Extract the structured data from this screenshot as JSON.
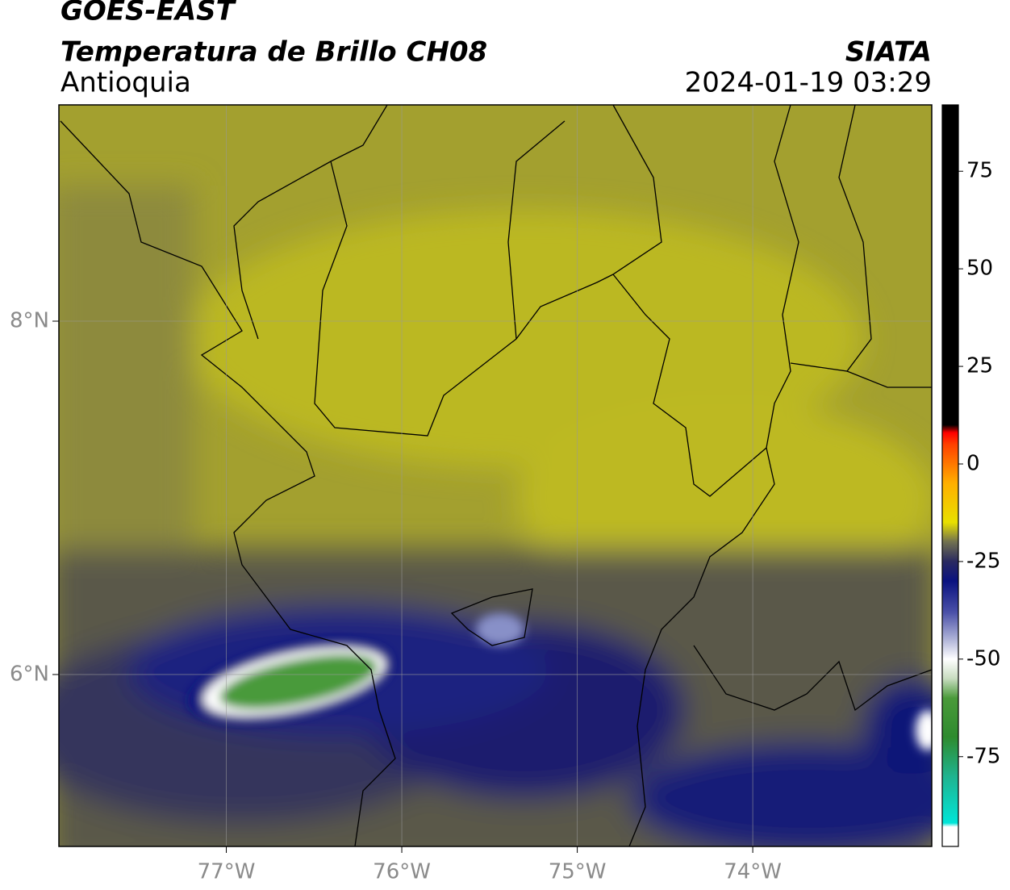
{
  "header": {
    "title": "GOES-EAST",
    "subtitle": "Temperatura de Brillo CH08",
    "region": "Antioquia",
    "source": "SIATA",
    "timestamp": "2024-01-19 03:29"
  },
  "map": {
    "xlim": [
      -77.954,
      -72.98
    ],
    "ylim": [
      5.027,
      9.224
    ],
    "xticks": [
      {
        "value": -77,
        "label": "77°W"
      },
      {
        "value": -76,
        "label": "76°W"
      },
      {
        "value": -75,
        "label": "75°W"
      },
      {
        "value": -74,
        "label": "74°W"
      }
    ],
    "yticks": [
      {
        "value": 8,
        "label": "8°N"
      },
      {
        "value": 6,
        "label": "6°N"
      }
    ],
    "grid": true
  },
  "colorbar": {
    "lim": [
      -98,
      92
    ],
    "ticks": [
      75,
      50,
      25,
      0,
      -25,
      -50,
      -75
    ],
    "stops": [
      {
        "value": -98,
        "color": "#ffffff"
      },
      {
        "value": -93,
        "color": "#ffffff"
      },
      {
        "value": -92,
        "color": "#00e5d8"
      },
      {
        "value": -80,
        "color": "#1fb38f"
      },
      {
        "value": -70,
        "color": "#2e8b2e"
      },
      {
        "value": -60,
        "color": "#4a9a3a"
      },
      {
        "value": -55,
        "color": "#c8dcc0"
      },
      {
        "value": -50,
        "color": "#ffffff"
      },
      {
        "value": -45,
        "color": "#b0b4d8"
      },
      {
        "value": -38,
        "color": "#4a50a8"
      },
      {
        "value": -30,
        "color": "#0a1280"
      },
      {
        "value": -25,
        "color": "#2a2a60"
      },
      {
        "value": -20,
        "color": "#707050"
      },
      {
        "value": -15,
        "color": "#e8e000"
      },
      {
        "value": -5,
        "color": "#ffb000"
      },
      {
        "value": 5,
        "color": "#ff4000"
      },
      {
        "value": 8,
        "color": "#ff0000"
      },
      {
        "value": 10,
        "color": "#000000"
      },
      {
        "value": 92,
        "color": "#000000"
      }
    ]
  }
}
